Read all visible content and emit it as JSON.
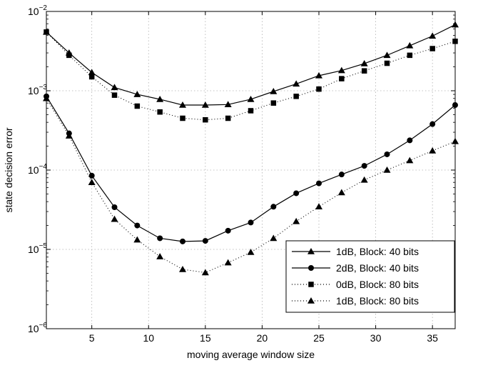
{
  "chart_data": {
    "type": "line",
    "title": "",
    "xlabel": "moving average window size",
    "ylabel": "state decision error",
    "xlim": [
      1,
      37
    ],
    "ylim": [
      1e-06,
      0.01
    ],
    "yscale": "log",
    "grid": true,
    "legend_position": "bottom-right",
    "x_ticks": [
      5,
      10,
      15,
      20,
      25,
      30,
      35
    ],
    "y_ticks": [
      {
        "value": 1e-06,
        "base": "10",
        "exp": "−6"
      },
      {
        "value": 1e-05,
        "base": "10",
        "exp": "−5"
      },
      {
        "value": 0.0001,
        "base": "10",
        "exp": "−4"
      },
      {
        "value": 0.001,
        "base": "10",
        "exp": "−3"
      },
      {
        "value": 0.01,
        "base": "10",
        "exp": "−2"
      }
    ],
    "x": [
      1,
      3,
      5,
      7,
      9,
      11,
      13,
      15,
      17,
      19,
      21,
      23,
      25,
      27,
      29,
      31,
      33,
      35,
      37
    ],
    "series": [
      {
        "name": "1dB, Block: 40 bits",
        "line": "solid",
        "marker": "triangle",
        "values": [
          0.0055,
          0.003,
          0.0017,
          0.0011,
          0.0009,
          0.00078,
          0.00066,
          0.00066,
          0.00067,
          0.00078,
          0.00098,
          0.00122,
          0.00155,
          0.0018,
          0.0022,
          0.0028,
          0.0037,
          0.0049,
          0.0068
        ]
      },
      {
        "name": "2dB, Block: 40 bits",
        "line": "solid",
        "marker": "circle",
        "values": [
          0.00085,
          0.00029,
          8.5e-05,
          3.4e-05,
          2e-05,
          1.38e-05,
          1.26e-05,
          1.28e-05,
          1.72e-05,
          2.18e-05,
          3.45e-05,
          5.1e-05,
          6.8e-05,
          8.8e-05,
          0.000113,
          0.000158,
          0.000237,
          0.00038,
          0.00066
        ]
      },
      {
        "name": "0dB, Block: 80 bits",
        "line": "dotted",
        "marker": "square",
        "values": [
          0.0055,
          0.0028,
          0.0015,
          0.00088,
          0.00064,
          0.00054,
          0.00045,
          0.00043,
          0.00045,
          0.00056,
          0.0007,
          0.00085,
          0.00105,
          0.00142,
          0.00178,
          0.00222,
          0.0028,
          0.0034,
          0.0042
        ]
      },
      {
        "name": "1dB, Block: 80 bits",
        "line": "dotted",
        "marker": "triangle",
        "values": [
          0.0008,
          0.00027,
          7e-05,
          2.4e-05,
          1.32e-05,
          8.1e-06,
          5.6e-06,
          5.1e-06,
          6.8e-06,
          9.2e-06,
          1.38e-05,
          2.25e-05,
          3.45e-05,
          5.2e-05,
          7.5e-05,
          0.0001,
          0.000132,
          0.000175,
          0.00023
        ]
      }
    ]
  }
}
